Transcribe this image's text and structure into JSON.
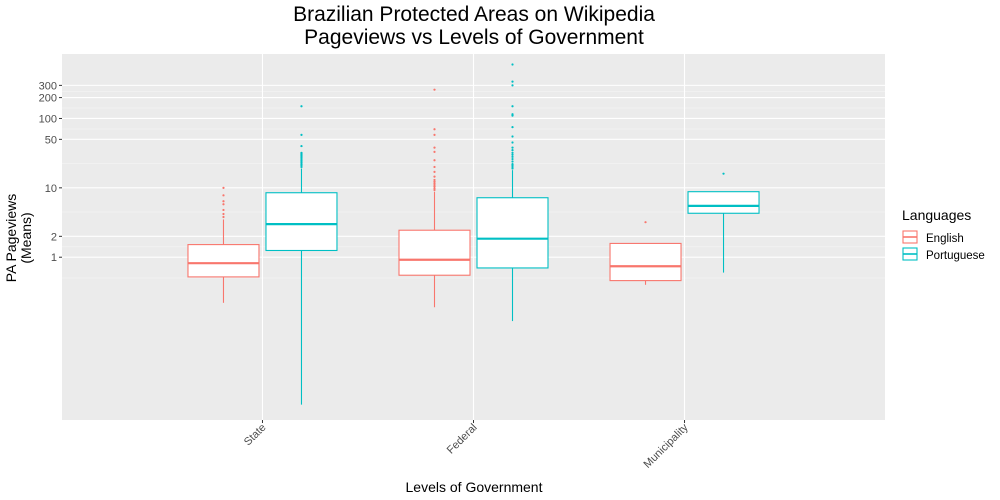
{
  "chart_data": {
    "type": "boxplot",
    "title": [
      "Brazilian Protected Areas on Wikipedia",
      "Pageviews vs Levels of Government"
    ],
    "xlabel": "Levels of Government",
    "ylabel": [
      "PA Pageviews",
      "(Means)"
    ],
    "y_scale": "log10",
    "ylim": [
      0.0045,
      850
    ],
    "y_ticks": [
      1,
      2,
      10,
      50,
      100,
      200,
      300
    ],
    "y_tick_labels": [
      "1",
      "2",
      "10",
      "50",
      "100",
      "200",
      "300"
    ],
    "categories": [
      "State",
      "Federal",
      "Municipality"
    ],
    "grid": true,
    "legend": {
      "title": "Languages",
      "position": "right",
      "entries": [
        "English",
        "Portuguese"
      ]
    },
    "series": [
      {
        "name": "English",
        "color": "#F8766D",
        "boxes": [
          {
            "category": "State",
            "whisker_low": 0.22,
            "q1": 0.52,
            "median": 0.82,
            "q3": 1.52,
            "whisker_high": 3.5,
            "outliers": [
              3.8,
              4.2,
              4.8,
              5.8,
              6.4,
              7.8,
              10
            ]
          },
          {
            "category": "Federal",
            "whisker_low": 0.19,
            "q1": 0.55,
            "median": 0.92,
            "q3": 2.45,
            "whisker_high": 8.8,
            "outliers": [
              9.3,
              9.8,
              10.4,
              11,
              11.6,
              12.3,
              13,
              14.5,
              17,
              20,
              25,
              33,
              38,
              58,
              70,
              260
            ]
          },
          {
            "category": "Municipality",
            "whisker_low": 0.4,
            "q1": 0.46,
            "median": 0.74,
            "q3": 1.58,
            "whisker_high": 1.58,
            "outliers": [
              3.2
            ]
          }
        ]
      },
      {
        "name": "Portuguese",
        "color": "#00BFC4",
        "boxes": [
          {
            "category": "State",
            "whisker_low": 0.0075,
            "q1": 1.25,
            "median": 3.0,
            "q3": 8.5,
            "whisker_high": 19,
            "outliers": [
              20,
              21,
              22,
              23,
              24,
              25,
              26,
              27,
              28,
              29,
              30,
              31,
              32,
              40,
              58,
              150
            ]
          },
          {
            "category": "Federal",
            "whisker_low": 0.12,
            "q1": 0.7,
            "median": 1.85,
            "q3": 7.2,
            "whisker_high": 18,
            "outliers": [
              19,
              20,
              21,
              22,
              24,
              26,
              28,
              30,
              32,
              35,
              38,
              45,
              55,
              75,
              110,
              115,
              150,
              300,
              340,
              600
            ]
          },
          {
            "category": "Municipality",
            "whisker_low": 0.6,
            "q1": 4.3,
            "median": 5.5,
            "q3": 8.8,
            "whisker_high": 8.8,
            "outliers": [
              16
            ]
          }
        ]
      }
    ]
  }
}
